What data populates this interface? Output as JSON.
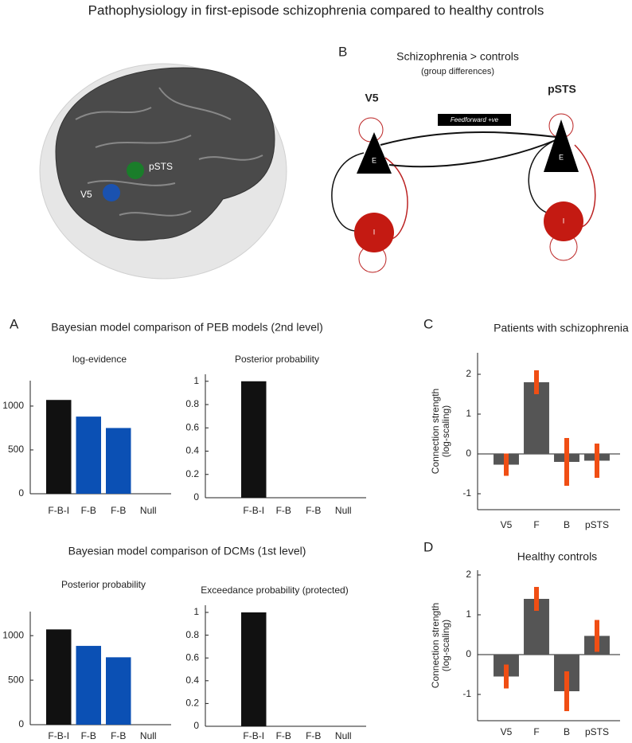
{
  "title": "Pathophysiology in first-episode schizophrenia compared to healthy controls",
  "panels": [
    "A",
    "B",
    "C",
    "D"
  ],
  "sections": [
    "Bayesian model comparison of PEB models (2nd level)",
    "Bayesian model comparison of DCMs (1st level)"
  ],
  "brain": {
    "regions": [
      "V5",
      "pSTS"
    ]
  },
  "diagram": {
    "title": "Schizophrenia > controls",
    "subtitle": "(group differences)",
    "regions": [
      "V5",
      "pSTS"
    ],
    "connection": "Feedforward +ve",
    "nodes": [
      "E",
      "I",
      "E",
      "I"
    ]
  },
  "chart_data": [
    {
      "type": "bar",
      "title": "log-evidence",
      "categories": [
        "F-B-I",
        "F-B",
        "F-B",
        "Null"
      ],
      "values": [
        1070,
        880,
        750,
        0
      ],
      "colors": [
        "#111111",
        "#0b50b4",
        "#0b50b4",
        "#0b50b4"
      ],
      "ylim": [
        0,
        1290
      ],
      "yticks": [
        0,
        500,
        1000
      ]
    },
    {
      "type": "bar",
      "title": "Posterior probability",
      "categories": [
        "F-B-I",
        "F-B",
        "F-B",
        "Null"
      ],
      "values": [
        1,
        0,
        0,
        0
      ],
      "colors": [
        "#111111",
        "#111111",
        "#111111",
        "#111111"
      ],
      "ylim": [
        0,
        1.06
      ],
      "yticks": [
        0,
        0.2,
        0.4,
        0.6,
        0.8,
        1
      ]
    },
    {
      "type": "bar",
      "title": "Posterior probability",
      "categories": [
        "F-B-I",
        "F-B",
        "F-B",
        "Null"
      ],
      "values": [
        1070,
        885,
        757,
        0
      ],
      "colors": [
        "#111111",
        "#0b50b4",
        "#0b50b4",
        "#0b50b4"
      ],
      "ylim": [
        0,
        1270
      ],
      "yticks": [
        0,
        500,
        1000
      ]
    },
    {
      "type": "bar",
      "title": "Exceedance probability (protected)",
      "categories": [
        "F-B-I",
        "F-B",
        "F-B",
        "Null"
      ],
      "values": [
        1,
        0,
        0,
        0
      ],
      "colors": [
        "#111111",
        "#111111",
        "#111111",
        "#111111"
      ],
      "ylim": [
        0,
        1.063
      ],
      "yticks": [
        0,
        0.2,
        0.4,
        0.6,
        0.8,
        1
      ]
    },
    {
      "type": "errorbar",
      "title": "Patients with schizophrenia",
      "ylabel": [
        "Connection strength",
        "(log-scaling)"
      ],
      "categories": [
        "V5",
        "F",
        "B",
        "pSTS"
      ],
      "values": [
        -0.27,
        1.8,
        -0.2,
        -0.17
      ],
      "errors": [
        0.28,
        0.3,
        0.6,
        0.43
      ],
      "color": "#555555",
      "error_color": "#f04e14",
      "ylim": [
        -1.4,
        2.54
      ],
      "yticks": [
        -1,
        0,
        1,
        2
      ]
    },
    {
      "type": "errorbar",
      "title": "Healthy controls",
      "ylabel": [
        "Connection strength",
        "(log-scaling)"
      ],
      "categories": [
        "V5",
        "F",
        "B",
        "pSTS"
      ],
      "values": [
        -0.55,
        1.4,
        -0.92,
        0.47
      ],
      "errors": [
        0.3,
        0.3,
        0.5,
        0.4
      ],
      "color": "#555555",
      "error_color": "#f04e14",
      "ylim": [
        -1.66,
        2.12
      ],
      "yticks": [
        -1,
        0,
        1,
        2
      ]
    }
  ]
}
